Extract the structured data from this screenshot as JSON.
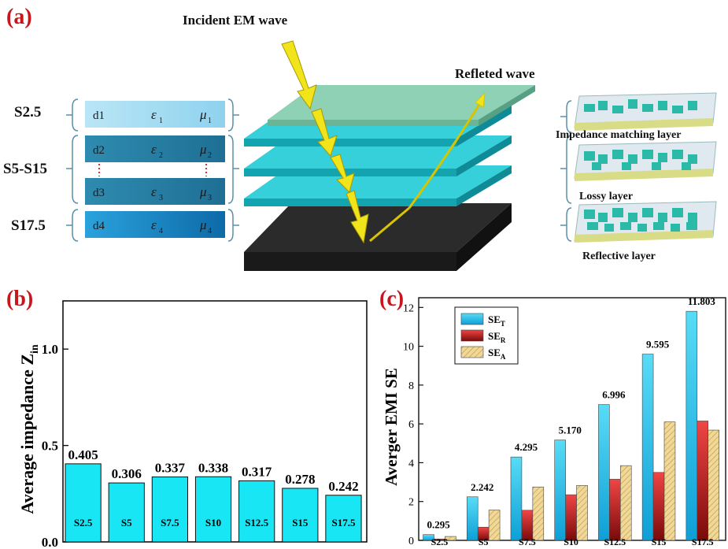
{
  "panel_a": {
    "letter": "(a)",
    "incident_label": "Incident EM wave",
    "reflected_label": "Refleted  wave",
    "samples": [
      {
        "label": "S2.5"
      },
      {
        "label": "S5-S15"
      },
      {
        "label": "S17.5"
      }
    ],
    "param_rows": [
      {
        "d": "d1",
        "eps": "ε",
        "eps_sub": "1",
        "mu": "μ",
        "mu_sub": "1",
        "color": "#a9dcf2"
      },
      {
        "d": "d2",
        "eps": "ε",
        "eps_sub": "2",
        "mu": "μ",
        "mu_sub": "2",
        "color": "#3a8fb5"
      },
      {
        "d": "d3",
        "eps": "ε",
        "eps_sub": "3",
        "mu": "μ",
        "mu_sub": "3",
        "color": "#2f86ad"
      },
      {
        "d": "d4",
        "eps": "ε",
        "eps_sub": "4",
        "mu": "μ",
        "mu_sub": "4",
        "color": "#1a89c8"
      }
    ],
    "layer_captions": [
      "Impedance matching layer",
      "Lossy layer",
      "Reflective layer"
    ],
    "colors": {
      "top_layer": "#8fd1b4",
      "lossy_layer": "#1fc4cf",
      "bottom_layer": "#2b2b2b",
      "arrow": "#f2e41a",
      "dots": "#e23030"
    }
  },
  "chart_data": [
    {
      "panel": "(b)",
      "type": "bar",
      "ylabel": "Average impedance Z",
      "ylabel_sub": "in",
      "ylim": [
        0.0,
        1.25
      ],
      "yticks": [
        "0.0",
        "0.5",
        "1.0"
      ],
      "categories": [
        "S2.5",
        "S5",
        "S7.5",
        "S10",
        "S12.5",
        "S15",
        "S17.5"
      ],
      "values": [
        0.405,
        0.306,
        0.337,
        0.338,
        0.317,
        0.278,
        0.242
      ],
      "value_labels": [
        "0.405",
        "0.306",
        "0.337",
        "0.338",
        "0.317",
        "0.278",
        "0.242"
      ],
      "bar_color": "#19e6f5"
    },
    {
      "panel": "(c)",
      "type": "bar",
      "ylabel": "Averger EMI SE",
      "ylim": [
        0,
        12.5
      ],
      "yticks": [
        "0",
        "2",
        "4",
        "6",
        "8",
        "10",
        "12"
      ],
      "categories": [
        "S2.5",
        "S5",
        "S7.5",
        "S10",
        "S12.5",
        "S15",
        "S17.5"
      ],
      "legend_position": "top-left",
      "series": [
        {
          "name": "SE",
          "sub": "T",
          "values": [
            0.295,
            2.242,
            4.295,
            5.17,
            6.996,
            9.595,
            11.803
          ],
          "color": "#10bce8"
        },
        {
          "name": "SE",
          "sub": "R",
          "values": [
            0.07,
            0.68,
            1.55,
            2.35,
            3.15,
            3.5,
            6.15
          ],
          "color": "#c80f0f"
        },
        {
          "name": "SE",
          "sub": "A",
          "values": [
            0.2,
            1.56,
            2.75,
            2.83,
            3.85,
            6.1,
            5.68
          ],
          "color": "#f0d89a"
        }
      ],
      "value_labels": [
        "0.295",
        "2.242",
        "4.295",
        "5.170",
        "6.996",
        "9.595",
        "11.803"
      ]
    }
  ]
}
